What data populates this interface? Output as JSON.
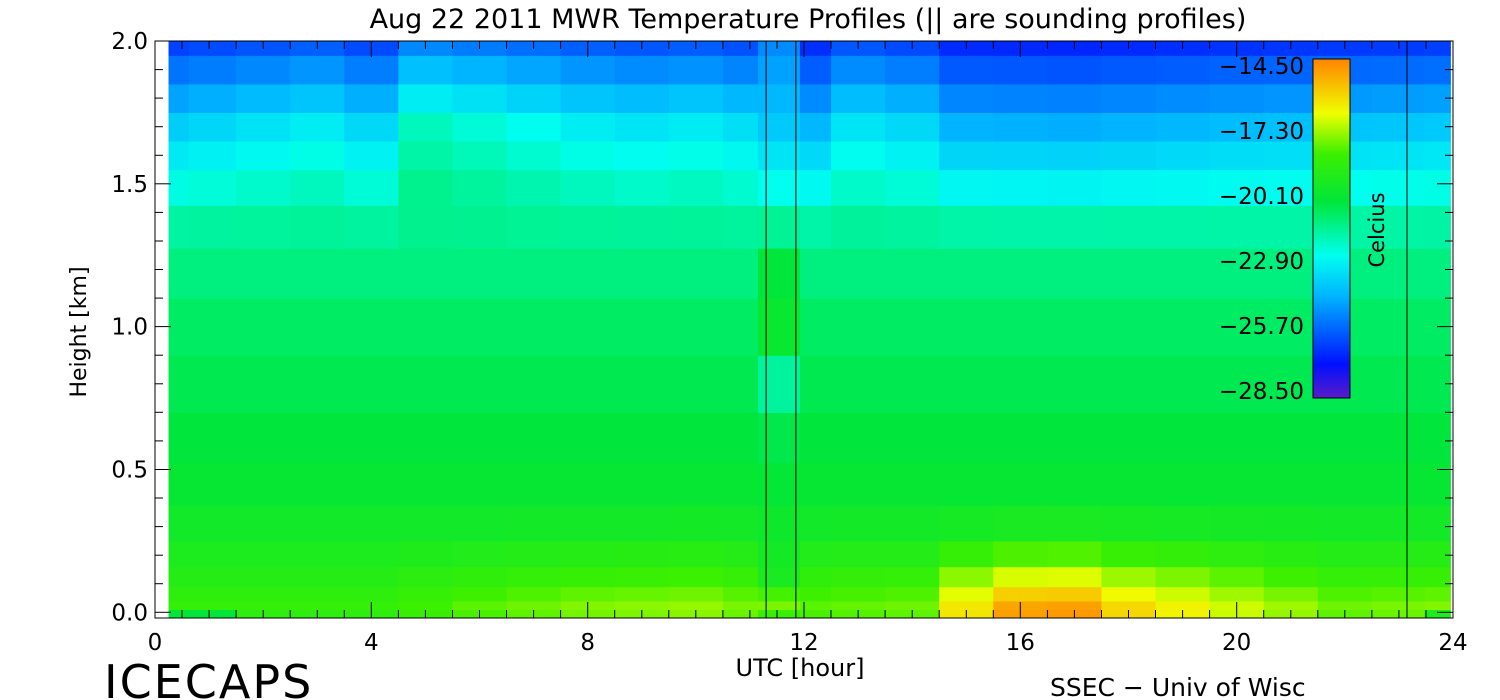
{
  "chart_data": {
    "type": "heatmap",
    "title": "Aug 22 2011 MWR Temperature Profiles (|| are sounding profiles)",
    "xlabel": "UTC [hour]",
    "ylabel": "Height [km]",
    "xlim": [
      0,
      24
    ],
    "ylim": [
      -0.02,
      2.0
    ],
    "x_ticks": [
      0,
      4,
      8,
      12,
      16,
      20,
      24
    ],
    "x_tick_labels": [
      "0",
      "4",
      "8",
      "12",
      "16",
      "20",
      "24"
    ],
    "y_ticks": [
      0.0,
      0.5,
      1.0,
      1.5,
      2.0
    ],
    "y_tick_labels": [
      "0.0",
      "0.5",
      "1.0",
      "1.5",
      "2.0"
    ],
    "data_start_hour": 0.25,
    "data_end_hour": 23.95,
    "sounding_profiles": [
      {
        "x_start": 11.3,
        "x_end": 11.85
      },
      {
        "x_end": 23.15
      }
    ],
    "heights_km": [
      0.0,
      0.02,
      0.06,
      0.12,
      0.2,
      0.3,
      0.45,
      0.6,
      0.8,
      1.0,
      1.2,
      1.35,
      1.5,
      1.6,
      1.7,
      1.8,
      1.9,
      2.0
    ],
    "hours": [
      0.25,
      1,
      2,
      3,
      4,
      5,
      6,
      7,
      8,
      9,
      10,
      11,
      11.3,
      11.85,
      12,
      13,
      14,
      15,
      16,
      17,
      18,
      19,
      20,
      21,
      22,
      23,
      23.95
    ],
    "colorbar": {
      "label": "Celcius",
      "ticks": [
        -14.5,
        -17.3,
        -20.1,
        -22.9,
        -25.7,
        -28.5
      ],
      "tick_labels": [
        "−14.50",
        "−17.30",
        "−20.10",
        "−22.90",
        "−25.70",
        "−28.50"
      ],
      "range": [
        -28.5,
        -14.5
      ],
      "colormap": "rainbow: purple-blue-cyan-green-yellow-orange"
    }
  },
  "footer": {
    "left": "ICECAPS",
    "right": "SSEC − Univ of Wisc"
  }
}
